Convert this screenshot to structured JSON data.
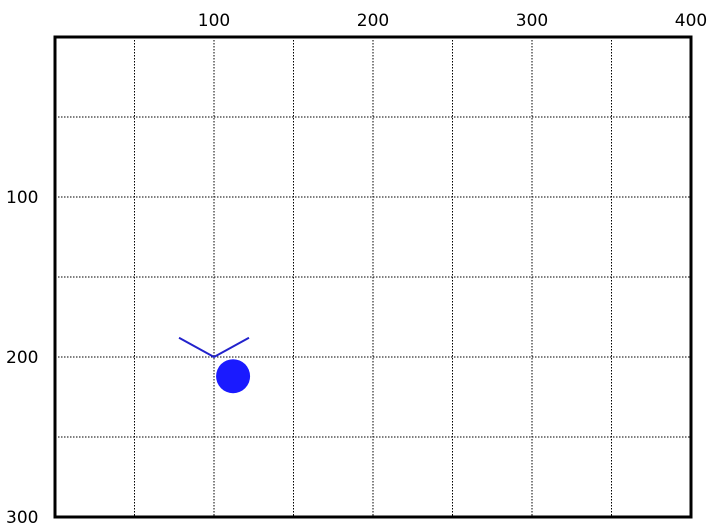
{
  "chart_data": {
    "type": "scatter",
    "xlim": [
      0,
      400
    ],
    "ylim": [
      0,
      300
    ],
    "y_inverted": true,
    "grid": true,
    "x_ticks": [
      {
        "value": 100,
        "label": "100"
      },
      {
        "value": 200,
        "label": "200"
      },
      {
        "value": 300,
        "label": "300"
      },
      {
        "value": 400,
        "label": "400"
      }
    ],
    "y_ticks": [
      {
        "value": 100,
        "label": "100"
      },
      {
        "value": 200,
        "label": "200"
      },
      {
        "value": 300,
        "label": "300"
      }
    ],
    "grid_x": [
      50,
      100,
      150,
      200,
      250,
      300,
      350
    ],
    "grid_y": [
      50,
      100,
      150,
      200,
      250
    ],
    "marker": {
      "shape": "v-caret",
      "vertex": [
        100,
        200
      ],
      "arm_ends": [
        [
          78,
          188
        ],
        [
          122,
          188
        ]
      ],
      "color": "#2222cc"
    },
    "point": {
      "x": 112,
      "y": 212,
      "color": "#1a1aff"
    },
    "colors": {
      "frame": "#000000",
      "grid": "#000000"
    }
  }
}
